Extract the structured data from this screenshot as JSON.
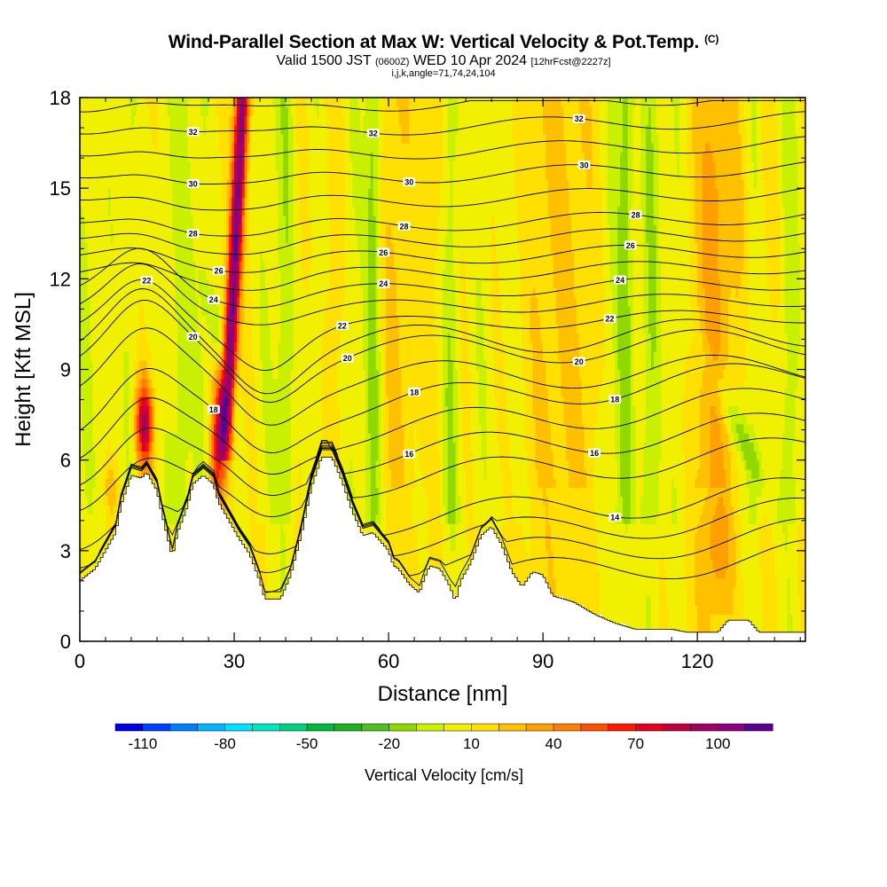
{
  "header": {
    "title": "Wind-Parallel Section at Max W: Vertical Velocity & Pot.Temp.",
    "copyright": "(C)",
    "valid_prefix": "Valid 1500 JST",
    "valid_utc": "(0600Z)",
    "valid_date": "WED 10 Apr 2024",
    "forecast": "[12hrFcst@2227z]",
    "params": "i,j,k,angle=71,74,24,104"
  },
  "chart_data": {
    "type": "heatmap",
    "xlabel": "Distance [nm]",
    "ylabel": "Height [Kft MSL]",
    "xlim": [
      0,
      141
    ],
    "ylim": [
      0,
      18
    ],
    "x_ticks": [
      "0",
      "30",
      "60",
      "90",
      "120"
    ],
    "y_ticks": [
      "0",
      "3",
      "6",
      "9",
      "12",
      "15",
      "18"
    ],
    "colorbar": {
      "label": "Vertical Velocity [cm/s]",
      "tick_labels": [
        "-110",
        "-80",
        "-50",
        "-20",
        "10",
        "40",
        "70",
        "100"
      ],
      "range": [
        -120,
        120
      ],
      "step": 10,
      "colors": [
        "#0000e6",
        "#0040ff",
        "#007fff",
        "#00b4ff",
        "#00e0ff",
        "#00e6c0",
        "#00d080",
        "#00b840",
        "#20b020",
        "#50c020",
        "#90d800",
        "#c8f000",
        "#f0f000",
        "#ffe000",
        "#ffc000",
        "#ffa000",
        "#ff8000",
        "#ff5000",
        "#ff1a00",
        "#e60020",
        "#c00040",
        "#a00060",
        "#8a0080",
        "#5a0090"
      ]
    },
    "theta_contours": [
      {
        "label": "14"
      },
      {
        "label": "16"
      },
      {
        "label": "18"
      },
      {
        "label": "20"
      },
      {
        "label": "22"
      },
      {
        "label": "24"
      },
      {
        "label": "26"
      },
      {
        "label": "28"
      },
      {
        "label": "30"
      },
      {
        "label": "32"
      }
    ],
    "terrain_kft": [
      [
        0,
        2.0
      ],
      [
        3,
        2.4
      ],
      [
        5,
        3.0
      ],
      [
        7,
        3.6
      ],
      [
        8,
        4.5
      ],
      [
        9,
        5.0
      ],
      [
        10,
        5.5
      ],
      [
        12,
        5.4
      ],
      [
        13,
        5.6
      ],
      [
        15,
        5.0
      ],
      [
        16,
        4.2
      ],
      [
        17,
        3.5
      ],
      [
        18,
        2.8
      ],
      [
        19,
        3.6
      ],
      [
        21,
        4.5
      ],
      [
        22,
        5.2
      ],
      [
        24,
        5.5
      ],
      [
        26,
        5.2
      ],
      [
        27,
        4.6
      ],
      [
        29,
        4.0
      ],
      [
        30,
        3.7
      ],
      [
        31,
        3.4
      ],
      [
        33,
        2.9
      ],
      [
        35,
        2.0
      ],
      [
        36,
        1.4
      ],
      [
        39,
        1.4
      ],
      [
        41,
        2.2
      ],
      [
        43,
        3.5
      ],
      [
        45,
        5.1
      ],
      [
        47,
        6.1
      ],
      [
        49,
        6.1
      ],
      [
        51,
        5.3
      ],
      [
        53,
        4.3
      ],
      [
        55,
        3.5
      ],
      [
        57,
        3.6
      ],
      [
        59,
        3.2
      ],
      [
        60,
        3.0
      ],
      [
        61,
        2.5
      ],
      [
        62,
        2.4
      ],
      [
        64,
        1.9
      ],
      [
        66,
        1.6
      ],
      [
        67,
        2.1
      ],
      [
        68,
        2.5
      ],
      [
        70,
        2.4
      ],
      [
        72,
        1.8
      ],
      [
        73,
        1.3
      ],
      [
        74,
        2.0
      ],
      [
        76,
        2.6
      ],
      [
        78,
        3.5
      ],
      [
        80,
        3.8
      ],
      [
        82,
        3.2
      ],
      [
        84,
        2.3
      ],
      [
        86,
        1.8
      ],
      [
        88,
        2.3
      ],
      [
        90,
        2.2
      ],
      [
        92,
        1.5
      ],
      [
        96,
        1.3
      ],
      [
        100,
        0.9
      ],
      [
        104,
        0.6
      ],
      [
        108,
        0.4
      ],
      [
        115,
        0.4
      ],
      [
        118,
        0.3
      ],
      [
        124,
        0.3
      ],
      [
        126,
        0.7
      ],
      [
        128,
        0.7
      ],
      [
        130,
        0.7
      ],
      [
        132,
        0.3
      ],
      [
        135,
        0.3
      ],
      [
        141,
        0.3
      ]
    ]
  }
}
